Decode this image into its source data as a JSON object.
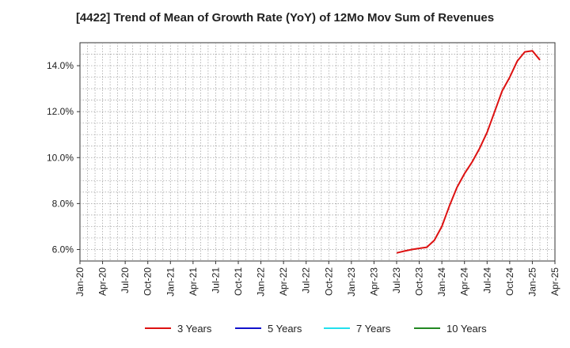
{
  "chart_data": {
    "type": "line",
    "title": "[4422]  Trend of Mean of Growth Rate (YoY) of 12Mo Mov Sum of Revenues",
    "xlabel": "",
    "ylabel": "",
    "x_ticks": [
      "Jan-20",
      "Apr-20",
      "Jul-20",
      "Oct-20",
      "Jan-21",
      "Apr-21",
      "Jul-21",
      "Oct-21",
      "Jan-22",
      "Apr-22",
      "Jul-22",
      "Oct-22",
      "Jan-23",
      "Apr-23",
      "Jul-23",
      "Oct-23",
      "Jan-24",
      "Apr-24",
      "Jul-24",
      "Oct-24",
      "Jan-25",
      "Apr-25"
    ],
    "y_ticks": [
      "6.0%",
      "8.0%",
      "10.0%",
      "12.0%",
      "14.0%"
    ],
    "y_tick_values": [
      6,
      8,
      10,
      12,
      14
    ],
    "ylim": [
      5.5,
      15.0
    ],
    "xlim_months": [
      0,
      63
    ],
    "grid": true,
    "legend_position": "bottom",
    "series": [
      {
        "name": "3 Years",
        "color": "#dd1111",
        "x_months": [
          42,
          43,
          44,
          45,
          46,
          47,
          48,
          49,
          50,
          51,
          52,
          53,
          54,
          55,
          56,
          57,
          58,
          59,
          60,
          61,
          62
        ],
        "values": [
          5.85,
          5.93,
          6.0,
          6.05,
          6.1,
          6.4,
          7.0,
          7.9,
          8.7,
          9.3,
          9.8,
          10.4,
          11.1,
          12.0,
          12.9,
          13.5,
          14.2,
          14.6,
          14.65,
          14.25,
          null
        ]
      },
      {
        "name": "5 Years",
        "color": "#1111cc",
        "x_months": [],
        "values": []
      },
      {
        "name": "7 Years",
        "color": "#22e0ee",
        "x_months": [],
        "values": []
      },
      {
        "name": "10 Years",
        "color": "#228822",
        "x_months": [],
        "values": []
      }
    ]
  }
}
